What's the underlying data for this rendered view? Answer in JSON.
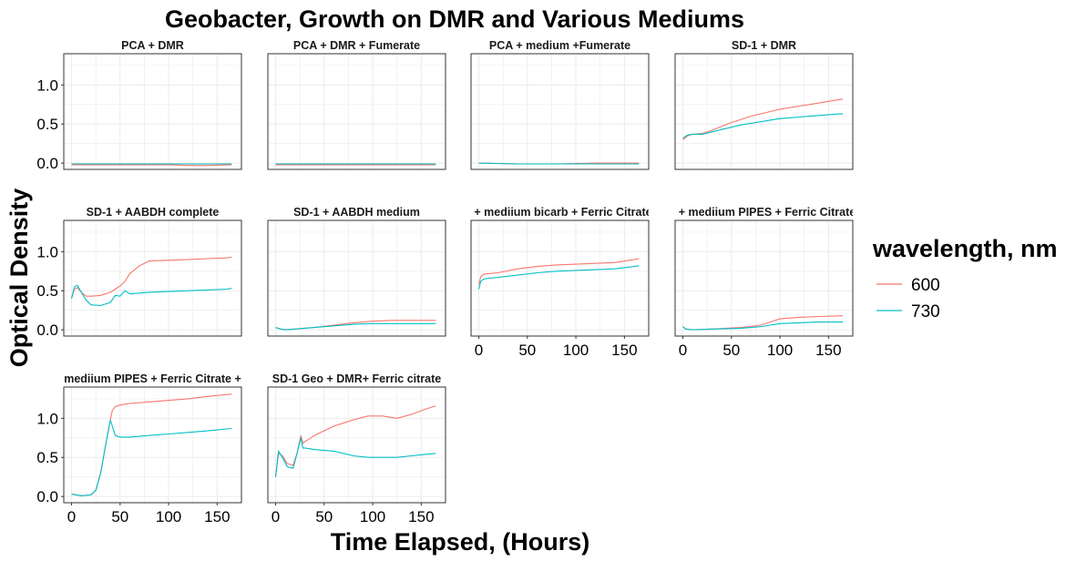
{
  "chart_data": {
    "type": "line",
    "title": "Geobacter, Growth on DMR and Various Mediums",
    "xlabel": "Time Elapsed, (Hours)",
    "ylabel": "Optical Density",
    "xlim": [
      -8,
      175
    ],
    "ylim": [
      -0.08,
      1.4
    ],
    "x_ticks": [
      0,
      50,
      100,
      150
    ],
    "y_ticks": [
      0.0,
      0.5,
      1.0
    ],
    "x_tick_labels": [
      "0",
      "50",
      "100",
      "150"
    ],
    "y_tick_labels": [
      "0.0",
      "0.5",
      "1.0"
    ],
    "grid": true,
    "legend": {
      "title": "wavelength, nm",
      "position": "right",
      "entries": [
        {
          "label": "600",
          "color": "#F8766D"
        },
        {
          "label": "730",
          "color": "#00BFC4"
        }
      ]
    },
    "facets": [
      {
        "label": "PCA + DMR",
        "series": [
          {
            "name": "600",
            "x": [
              0,
              20,
              40,
              60,
              80,
              100,
              120,
              140,
              165
            ],
            "y": [
              -0.02,
              -0.02,
              -0.02,
              -0.02,
              -0.02,
              -0.02,
              -0.03,
              -0.03,
              -0.02
            ]
          },
          {
            "name": "730",
            "x": [
              0,
              20,
              40,
              60,
              80,
              100,
              120,
              140,
              165
            ],
            "y": [
              -0.01,
              -0.01,
              -0.01,
              -0.01,
              -0.01,
              -0.01,
              -0.01,
              -0.01,
              -0.01
            ]
          }
        ]
      },
      {
        "label": "PCA + DMR + Fumerate",
        "series": [
          {
            "name": "600",
            "x": [
              0,
              40,
              80,
              120,
              165
            ],
            "y": [
              -0.02,
              -0.02,
              -0.02,
              -0.02,
              -0.02
            ]
          },
          {
            "name": "730",
            "x": [
              0,
              40,
              80,
              120,
              165
            ],
            "y": [
              -0.01,
              -0.01,
              -0.01,
              -0.01,
              -0.01
            ]
          }
        ]
      },
      {
        "label": "PCA + medium +Fumerate",
        "series": [
          {
            "name": "600",
            "x": [
              0,
              40,
              80,
              120,
              165
            ],
            "y": [
              0.0,
              -0.01,
              -0.01,
              0.0,
              0.0
            ]
          },
          {
            "name": "730",
            "x": [
              0,
              40,
              80,
              120,
              165
            ],
            "y": [
              0.0,
              -0.01,
              -0.01,
              -0.01,
              -0.01
            ]
          }
        ]
      },
      {
        "label": "SD-1  + DMR",
        "series": [
          {
            "name": "600",
            "x": [
              0,
              5,
              10,
              20,
              30,
              40,
              50,
              60,
              70,
              80,
              90,
              100,
              110,
              120,
              130,
              140,
              150,
              160,
              165
            ],
            "y": [
              0.3,
              0.35,
              0.37,
              0.38,
              0.42,
              0.47,
              0.52,
              0.56,
              0.6,
              0.63,
              0.66,
              0.69,
              0.71,
              0.73,
              0.75,
              0.77,
              0.79,
              0.81,
              0.82
            ]
          },
          {
            "name": "730",
            "x": [
              0,
              5,
              10,
              20,
              30,
              40,
              50,
              60,
              70,
              80,
              90,
              100,
              110,
              120,
              130,
              140,
              150,
              160,
              165
            ],
            "y": [
              0.32,
              0.36,
              0.37,
              0.37,
              0.4,
              0.43,
              0.46,
              0.49,
              0.51,
              0.53,
              0.55,
              0.57,
              0.58,
              0.59,
              0.6,
              0.61,
              0.62,
              0.63,
              0.63
            ]
          }
        ]
      },
      {
        "label": "SD-1 + AABDH complete",
        "series": [
          {
            "name": "600",
            "x": [
              0,
              3,
              6,
              10,
              15,
              20,
              30,
              40,
              45,
              50,
              55,
              60,
              70,
              80,
              100,
              120,
              140,
              160,
              165
            ],
            "y": [
              0.4,
              0.52,
              0.54,
              0.48,
              0.43,
              0.43,
              0.44,
              0.48,
              0.52,
              0.56,
              0.62,
              0.72,
              0.82,
              0.88,
              0.89,
              0.9,
              0.91,
              0.92,
              0.93
            ]
          },
          {
            "name": "730",
            "x": [
              0,
              3,
              6,
              10,
              15,
              20,
              30,
              40,
              45,
              50,
              55,
              60,
              70,
              80,
              100,
              120,
              140,
              160,
              165
            ],
            "y": [
              0.4,
              0.55,
              0.57,
              0.48,
              0.38,
              0.32,
              0.31,
              0.35,
              0.44,
              0.43,
              0.5,
              0.46,
              0.47,
              0.48,
              0.49,
              0.5,
              0.51,
              0.52,
              0.53
            ]
          }
        ]
      },
      {
        "label": "SD-1 + AABDH medium",
        "series": [
          {
            "name": "600",
            "x": [
              0,
              5,
              10,
              20,
              40,
              60,
              80,
              100,
              120,
              140,
              165
            ],
            "y": [
              0.03,
              0.01,
              0.0,
              0.01,
              0.03,
              0.06,
              0.09,
              0.11,
              0.12,
              0.12,
              0.12
            ]
          },
          {
            "name": "730",
            "x": [
              0,
              5,
              10,
              20,
              40,
              60,
              80,
              100,
              120,
              140,
              165
            ],
            "y": [
              0.03,
              0.01,
              0.0,
              0.01,
              0.03,
              0.05,
              0.07,
              0.08,
              0.08,
              0.08,
              0.08
            ]
          }
        ]
      },
      {
        "label": "l + mediium bicarb + Ferric Citrate",
        "series": [
          {
            "name": "600",
            "x": [
              0,
              2,
              5,
              10,
              20,
              40,
              60,
              80,
              100,
              120,
              140,
              160,
              165
            ],
            "y": [
              0.58,
              0.68,
              0.71,
              0.72,
              0.73,
              0.78,
              0.81,
              0.83,
              0.84,
              0.85,
              0.86,
              0.9,
              0.91
            ]
          },
          {
            "name": "730",
            "x": [
              0,
              2,
              5,
              10,
              20,
              40,
              60,
              80,
              100,
              120,
              140,
              160,
              165
            ],
            "y": [
              0.52,
              0.62,
              0.65,
              0.66,
              0.67,
              0.7,
              0.73,
              0.75,
              0.76,
              0.77,
              0.78,
              0.81,
              0.82
            ]
          }
        ]
      },
      {
        "label": "l + mediium PIPES + Ferric Citrate",
        "series": [
          {
            "name": "600",
            "x": [
              0,
              3,
              10,
              30,
              60,
              80,
              90,
              100,
              120,
              140,
              165
            ],
            "y": [
              0.04,
              0.01,
              0.0,
              0.01,
              0.03,
              0.06,
              0.1,
              0.14,
              0.16,
              0.17,
              0.18
            ]
          },
          {
            "name": "730",
            "x": [
              0,
              3,
              10,
              30,
              60,
              80,
              90,
              100,
              120,
              140,
              165
            ],
            "y": [
              0.04,
              0.01,
              0.0,
              0.01,
              0.02,
              0.04,
              0.06,
              0.08,
              0.09,
              0.1,
              0.1
            ]
          }
        ]
      },
      {
        "label": "mediium PIPES + Ferric Citrate +",
        "series": [
          {
            "name": "600",
            "x": [
              0,
              10,
              20,
              25,
              30,
              35,
              40,
              42,
              45,
              50,
              60,
              80,
              100,
              120,
              140,
              165
            ],
            "y": [
              0.03,
              0.01,
              0.02,
              0.08,
              0.3,
              0.65,
              0.98,
              1.1,
              1.15,
              1.17,
              1.19,
              1.21,
              1.23,
              1.25,
              1.28,
              1.31
            ]
          },
          {
            "name": "730",
            "x": [
              0,
              10,
              20,
              25,
              30,
              35,
              40,
              42,
              45,
              50,
              60,
              80,
              100,
              120,
              140,
              165
            ],
            "y": [
              0.03,
              0.01,
              0.02,
              0.08,
              0.3,
              0.65,
              0.98,
              0.9,
              0.78,
              0.76,
              0.76,
              0.78,
              0.8,
              0.82,
              0.84,
              0.87
            ]
          }
        ]
      },
      {
        "label": "SD-1 Geo + DMR+ Ferric citrate",
        "series": [
          {
            "name": "600",
            "x": [
              0,
              3,
              7,
              12,
              18,
              22,
              26,
              28,
              30,
              40,
              60,
              80,
              95,
              110,
              125,
              140,
              155,
              165
            ],
            "y": [
              0.25,
              0.55,
              0.52,
              0.42,
              0.4,
              0.55,
              0.78,
              0.68,
              0.7,
              0.78,
              0.9,
              0.98,
              1.03,
              1.03,
              1.0,
              1.05,
              1.12,
              1.16
            ]
          },
          {
            "name": "730",
            "x": [
              0,
              3,
              7,
              12,
              18,
              22,
              26,
              28,
              30,
              40,
              60,
              80,
              95,
              110,
              125,
              140,
              155,
              165
            ],
            "y": [
              0.25,
              0.58,
              0.5,
              0.38,
              0.36,
              0.55,
              0.75,
              0.62,
              0.62,
              0.6,
              0.58,
              0.52,
              0.5,
              0.5,
              0.5,
              0.52,
              0.54,
              0.55
            ]
          }
        ]
      }
    ]
  }
}
